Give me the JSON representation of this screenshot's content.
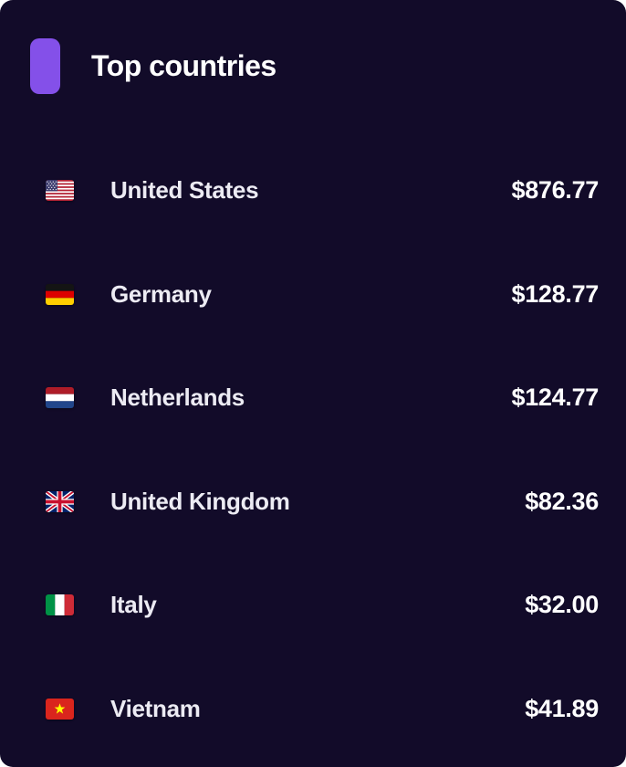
{
  "card": {
    "title": "Top countries",
    "accent_color": "#8450e9",
    "background_color": "#120b29",
    "title_color": "#ffffff",
    "country_text_color": "#ecebf3",
    "amount_text_color": "#ffffff"
  },
  "rows": [
    {
      "country": "United States",
      "amount": "$876.77",
      "flag_icon": "us-flag-icon"
    },
    {
      "country": "Germany",
      "amount": "$128.77",
      "flag_icon": "de-flag-icon"
    },
    {
      "country": "Netherlands",
      "amount": "$124.77",
      "flag_icon": "nl-flag-icon"
    },
    {
      "country": "United Kingdom",
      "amount": "$82.36",
      "flag_icon": "gb-flag-icon"
    },
    {
      "country": "Italy",
      "amount": "$32.00",
      "flag_icon": "it-flag-icon"
    },
    {
      "country": "Vietnam",
      "amount": "$41.89",
      "flag_icon": "vn-flag-icon"
    }
  ]
}
